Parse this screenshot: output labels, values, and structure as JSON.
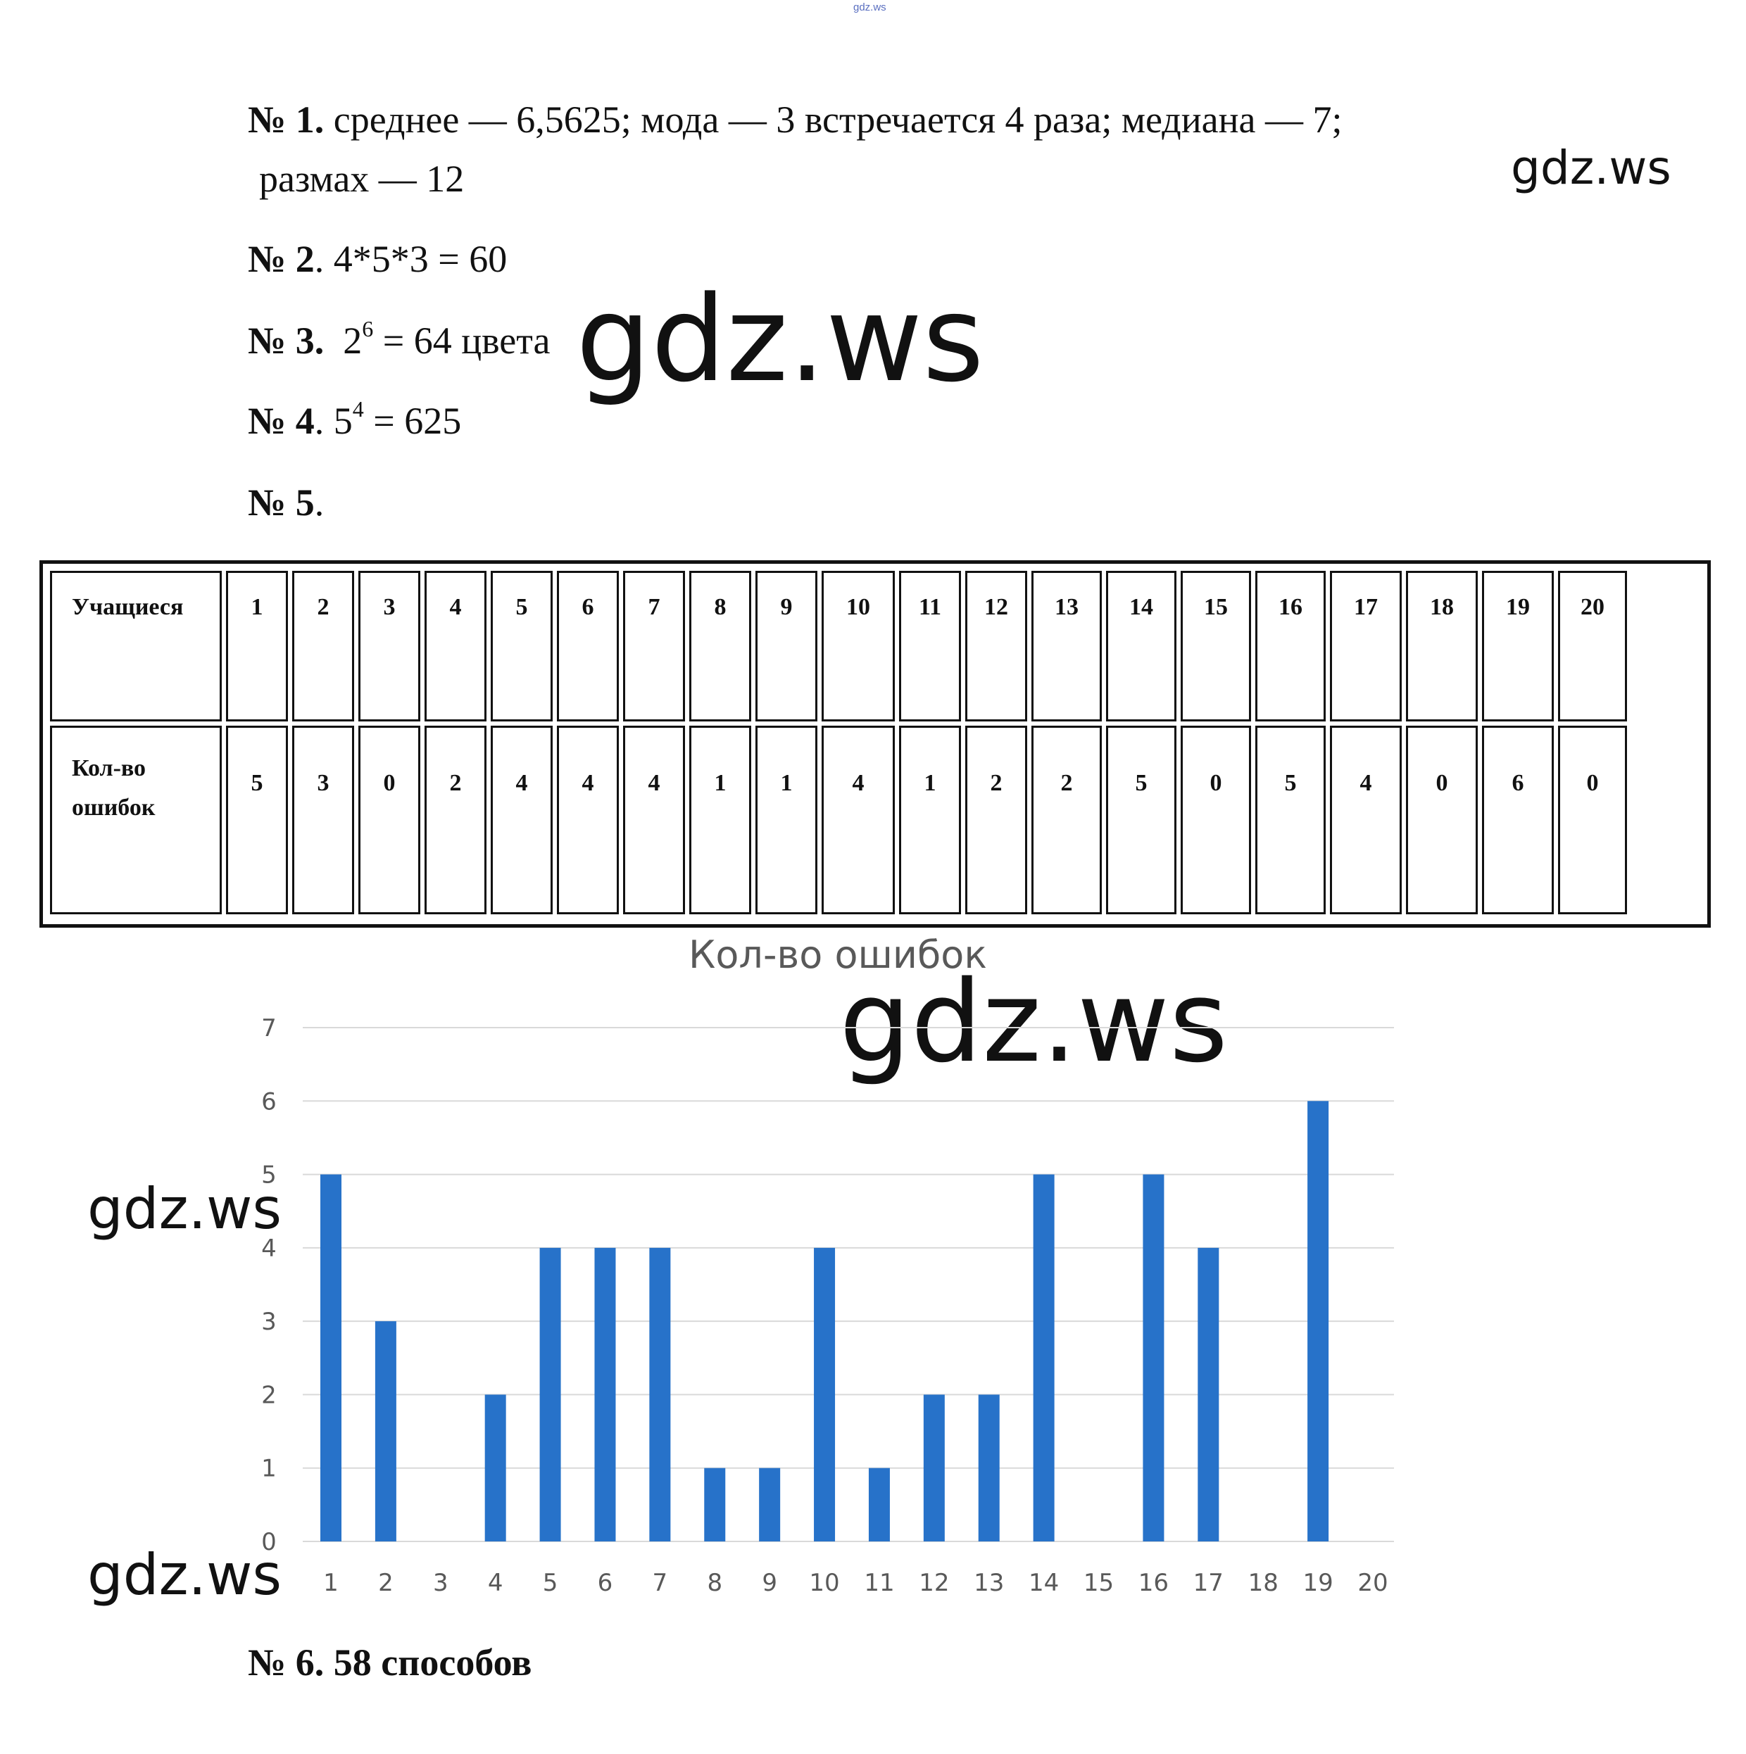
{
  "watermarks": {
    "top_small": "gdz.ws",
    "w1": "gdz.ws",
    "w2": "gdz.ws",
    "w3": "gdz.ws",
    "w4": "gdz.ws",
    "w5": "gdz.ws"
  },
  "tasks": [
    {
      "num": "№ 1.",
      "text": "среднее — 6,5625;   мода — 3 встречается 4 раза;   медиана — 7;",
      "text2": "размах — 12"
    },
    {
      "num": "№ 2",
      "text": ".  4*5*3 = 60"
    },
    {
      "num": "№ 3.",
      "base": "2",
      "exp": "6",
      "rest": " = 64 цвета"
    },
    {
      "num": "№ 4",
      "base": ".  5",
      "exp": "4",
      "rest": " = 625"
    },
    {
      "num": "№ 5",
      "text": "."
    }
  ],
  "table": {
    "row1_header": "Учащиеся",
    "row2_header_line1": "Кол-во",
    "row2_header_line2": "ошибок",
    "students": [
      "1",
      "2",
      "3",
      "4",
      "5",
      "6",
      "7",
      "8",
      "9",
      "10",
      "11",
      "12",
      "13",
      "14",
      "15",
      "16",
      "17",
      "18",
      "19",
      "20"
    ],
    "errors": [
      "5",
      "3",
      "0",
      "2",
      "4",
      "4",
      "4",
      "1",
      "1",
      "4",
      "1",
      "2",
      "2",
      "5",
      "0",
      "5",
      "4",
      "0",
      "6",
      "0"
    ]
  },
  "chart_data": {
    "type": "bar",
    "title": "Кол-во ошибок",
    "categories": [
      "1",
      "2",
      "3",
      "4",
      "5",
      "6",
      "7",
      "8",
      "9",
      "10",
      "11",
      "12",
      "13",
      "14",
      "15",
      "16",
      "17",
      "18",
      "19",
      "20"
    ],
    "values": [
      5,
      3,
      0,
      2,
      4,
      4,
      4,
      1,
      1,
      4,
      1,
      2,
      2,
      5,
      0,
      5,
      4,
      0,
      6,
      0
    ],
    "ylim": [
      0,
      7
    ],
    "yticks": [
      "0",
      "1",
      "2",
      "3",
      "4",
      "5",
      "6",
      "7"
    ],
    "grid": true,
    "color": "#2772c9"
  },
  "task6": {
    "text": "№ 6. 58 способов"
  }
}
